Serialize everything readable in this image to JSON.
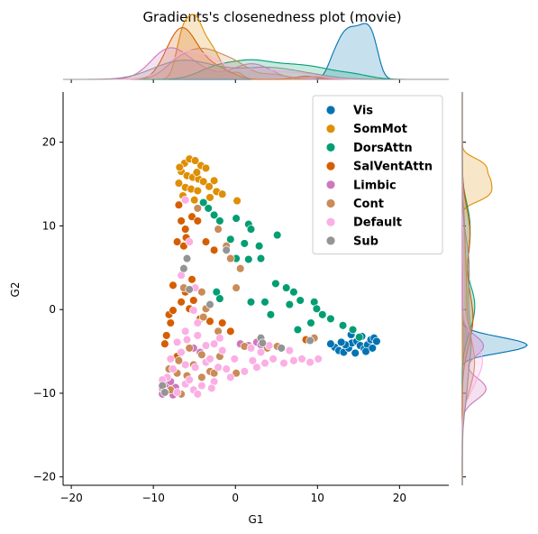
{
  "chart_data": {
    "type": "scatter",
    "title": "Gradients's closenedness plot (movie)",
    "xlabel": "G1",
    "ylabel": "G2",
    "xlim": [
      -21,
      26
    ],
    "ylim": [
      -21,
      26
    ],
    "xticks": [
      -20,
      -10,
      0,
      10,
      20
    ],
    "yticks": [
      -20,
      -10,
      0,
      10,
      20
    ],
    "grid": false,
    "legend_position": "top-right",
    "marginals": "kde",
    "series": [
      {
        "name": "Vis",
        "color": "#0173b2",
        "points": [
          [
            12.1,
            -4.5
          ],
          [
            12.6,
            -4.9
          ],
          [
            13.2,
            -5.1
          ],
          [
            13.8,
            -4.6
          ],
          [
            14.2,
            -4.0
          ],
          [
            14.8,
            -3.8
          ],
          [
            15.2,
            -4.3
          ],
          [
            15.7,
            -4.7
          ],
          [
            16.1,
            -4.2
          ],
          [
            16.5,
            -3.6
          ],
          [
            16.9,
            -3.4
          ],
          [
            17.2,
            -3.8
          ],
          [
            15.4,
            -3.2
          ],
          [
            14.1,
            -3.0
          ],
          [
            13.4,
            -4.2
          ],
          [
            12.9,
            -3.9
          ],
          [
            15.9,
            -5.0
          ],
          [
            16.7,
            -4.6
          ],
          [
            14.6,
            -5.2
          ],
          [
            11.6,
            -4.1
          ]
        ]
      },
      {
        "name": "SomMot",
        "color": "#de8f05",
        "points": [
          [
            -6.2,
            17.5
          ],
          [
            -5.6,
            18.0
          ],
          [
            -4.9,
            17.8
          ],
          [
            -4.2,
            17.2
          ],
          [
            -3.6,
            16.9
          ],
          [
            -6.6,
            16.5
          ],
          [
            -5.9,
            16.0
          ],
          [
            -5.2,
            15.8
          ],
          [
            -4.5,
            15.6
          ],
          [
            -3.9,
            15.3
          ],
          [
            -6.9,
            15.1
          ],
          [
            -6.1,
            14.6
          ],
          [
            -5.4,
            14.4
          ],
          [
            -4.6,
            14.2
          ],
          [
            -3.2,
            14.7
          ],
          [
            -2.6,
            15.4
          ],
          [
            -6.4,
            13.6
          ],
          [
            -5.0,
            13.1
          ],
          [
            -3.1,
            13.4
          ],
          [
            -2.3,
            14.1
          ],
          [
            0.2,
            13.0
          ],
          [
            -1.6,
            13.8
          ],
          [
            -6.8,
            17.0
          ],
          [
            -4.7,
            16.4
          ]
        ]
      },
      {
        "name": "DorsAttn",
        "color": "#029e73",
        "points": [
          [
            -3.3,
            12.1
          ],
          [
            -2.6,
            11.3
          ],
          [
            -1.9,
            10.6
          ],
          [
            0.1,
            10.9
          ],
          [
            1.6,
            10.2
          ],
          [
            1.9,
            9.6
          ],
          [
            -0.6,
            8.4
          ],
          [
            1.1,
            7.9
          ],
          [
            2.9,
            7.6
          ],
          [
            5.1,
            8.9
          ],
          [
            3.1,
            6.1
          ],
          [
            0.1,
            6.1
          ],
          [
            1.6,
            6.0
          ],
          [
            4.9,
            3.1
          ],
          [
            6.2,
            2.6
          ],
          [
            7.1,
            2.1
          ],
          [
            7.9,
            1.1
          ],
          [
            6.6,
            0.6
          ],
          [
            9.6,
            0.9
          ],
          [
            9.9,
            0.1
          ],
          [
            10.6,
            -0.6
          ],
          [
            11.6,
            -1.1
          ],
          [
            13.1,
            -1.9
          ],
          [
            14.3,
            -2.4
          ],
          [
            15.1,
            -3.3
          ],
          [
            3.6,
            0.9
          ],
          [
            -2.3,
            2.1
          ],
          [
            -1.9,
            1.3
          ],
          [
            1.9,
            0.9
          ],
          [
            7.6,
            -2.4
          ],
          [
            4.3,
            -0.6
          ],
          [
            9.2,
            -1.6
          ],
          [
            -3.9,
            12.8
          ]
        ]
      },
      {
        "name": "SalVentAttn",
        "color": "#d55e00",
        "points": [
          [
            -6.9,
            12.5
          ],
          [
            -6.6,
            10.6
          ],
          [
            -6.1,
            9.6
          ],
          [
            -7.1,
            8.1
          ],
          [
            -6.3,
            7.6
          ],
          [
            -6.0,
            8.6
          ],
          [
            -5.3,
            11.1
          ],
          [
            -4.6,
            10.6
          ],
          [
            -3.6,
            8.1
          ],
          [
            -2.6,
            7.1
          ],
          [
            -6.3,
            4.9
          ],
          [
            -5.3,
            3.6
          ],
          [
            -7.6,
            2.9
          ],
          [
            -6.1,
            2.1
          ],
          [
            -5.6,
            0.1
          ],
          [
            -4.3,
            -1.1
          ],
          [
            -3.1,
            -1.4
          ],
          [
            -8.1,
            -0.6
          ],
          [
            -7.9,
            -1.6
          ],
          [
            -8.6,
            -4.1
          ],
          [
            -7.1,
            -5.6
          ],
          [
            -1.6,
            -1.6
          ],
          [
            -0.6,
            -2.6
          ],
          [
            8.6,
            -3.6
          ],
          [
            -5.1,
            1.1
          ],
          [
            -6.6,
            0.9
          ],
          [
            -7.6,
            -0.1
          ],
          [
            -8.4,
            -3.1
          ]
        ]
      },
      {
        "name": "Limbic",
        "color": "#cc78bc",
        "points": [
          [
            -8.9,
            -10.1
          ],
          [
            -8.1,
            -9.6
          ],
          [
            -7.6,
            -10.2
          ],
          [
            -7.3,
            -9.3
          ],
          [
            -8.4,
            -9.0
          ],
          [
            0.6,
            -4.1
          ],
          [
            1.6,
            -4.3
          ],
          [
            2.6,
            -3.9
          ],
          [
            3.1,
            -4.2
          ],
          [
            -5.1,
            -4.6
          ],
          [
            -4.3,
            -5.1
          ],
          [
            -8.9,
            -9.4
          ],
          [
            -7.9,
            -8.6
          ]
        ]
      },
      {
        "name": "Cont",
        "color": "#c98b58",
        "points": [
          [
            -4.6,
            12.1
          ],
          [
            -2.1,
            9.6
          ],
          [
            -1.1,
            7.6
          ],
          [
            -0.6,
            6.1
          ],
          [
            0.6,
            4.9
          ],
          [
            -6.3,
            2.6
          ],
          [
            -4.1,
            2.1
          ],
          [
            0.1,
            2.6
          ],
          [
            -3.6,
            0.1
          ],
          [
            -3.9,
            -0.9
          ],
          [
            -2.1,
            -2.6
          ],
          [
            -5.6,
            -4.6
          ],
          [
            -4.1,
            -5.4
          ],
          [
            -1.9,
            -5.6
          ],
          [
            -7.1,
            -7.6
          ],
          [
            -5.9,
            -7.9
          ],
          [
            -4.1,
            -8.1
          ],
          [
            -3.1,
            -7.4
          ],
          [
            -7.9,
            -9.6
          ],
          [
            -6.6,
            -10.1
          ],
          [
            -2.6,
            -7.6
          ],
          [
            0.1,
            -7.6
          ],
          [
            1.1,
            -4.4
          ],
          [
            3.9,
            -4.6
          ],
          [
            5.1,
            -4.4
          ],
          [
            9.6,
            -3.4
          ],
          [
            -6.9,
            -6.1
          ],
          [
            -8.1,
            -7.1
          ],
          [
            -5.1,
            -6.6
          ]
        ]
      },
      {
        "name": "Default",
        "color": "#fbafe4",
        "points": [
          [
            -6.1,
            13.1
          ],
          [
            -5.6,
            8.1
          ],
          [
            -6.6,
            4.1
          ],
          [
            -4.9,
            2.6
          ],
          [
            -5.1,
            -0.1
          ],
          [
            -4.6,
            -1.6
          ],
          [
            -6.1,
            -2.6
          ],
          [
            -5.9,
            -3.6
          ],
          [
            -7.1,
            -3.9
          ],
          [
            -4.6,
            -3.1
          ],
          [
            -3.6,
            -4.3
          ],
          [
            -2.6,
            -4.1
          ],
          [
            -6.6,
            -5.1
          ],
          [
            -7.9,
            -5.9
          ],
          [
            -6.1,
            -6.6
          ],
          [
            -4.9,
            -6.9
          ],
          [
            -3.6,
            -6.3
          ],
          [
            -2.1,
            -6.9
          ],
          [
            -1.1,
            -7.1
          ],
          [
            -0.6,
            -8.1
          ],
          [
            -2.6,
            -8.6
          ],
          [
            -4.1,
            -9.1
          ],
          [
            -5.1,
            -9.6
          ],
          [
            -6.1,
            -8.9
          ],
          [
            -8.3,
            -8.1
          ],
          [
            -8.6,
            -9.8
          ],
          [
            -7.1,
            -9.9
          ],
          [
            1.1,
            -7.4
          ],
          [
            2.6,
            -6.9
          ],
          [
            3.6,
            -6.4
          ],
          [
            4.6,
            -5.9
          ],
          [
            5.9,
            -6.4
          ],
          [
            7.1,
            -6.1
          ],
          [
            8.1,
            -5.9
          ],
          [
            9.1,
            -6.3
          ],
          [
            10.1,
            -5.9
          ],
          [
            2.1,
            -6.1
          ],
          [
            -0.1,
            -5.9
          ],
          [
            1.9,
            -4.6
          ],
          [
            4.1,
            -4.3
          ],
          [
            -1.6,
            -4.9
          ],
          [
            -3.1,
            -5.9
          ],
          [
            -7.6,
            -7.1
          ],
          [
            -8.9,
            -8.4
          ],
          [
            -5.6,
            -8.4
          ],
          [
            -1.9,
            -3.4
          ],
          [
            6.6,
            -4.9
          ],
          [
            3.1,
            -5.1
          ],
          [
            -2.9,
            -9.4
          ],
          [
            -4.6,
            -10.1
          ]
        ]
      },
      {
        "name": "Sub",
        "color": "#949494",
        "points": [
          [
            -5.9,
            6.1
          ],
          [
            -6.3,
            4.9
          ],
          [
            -1.1,
            7.1
          ],
          [
            -5.6,
            2.4
          ],
          [
            -3.1,
            0.6
          ],
          [
            3.1,
            -3.4
          ],
          [
            5.6,
            -4.6
          ],
          [
            -8.9,
            -9.1
          ],
          [
            -8.6,
            -9.9
          ],
          [
            9.1,
            -3.7
          ],
          [
            3.3,
            -4.0
          ]
        ]
      }
    ]
  }
}
